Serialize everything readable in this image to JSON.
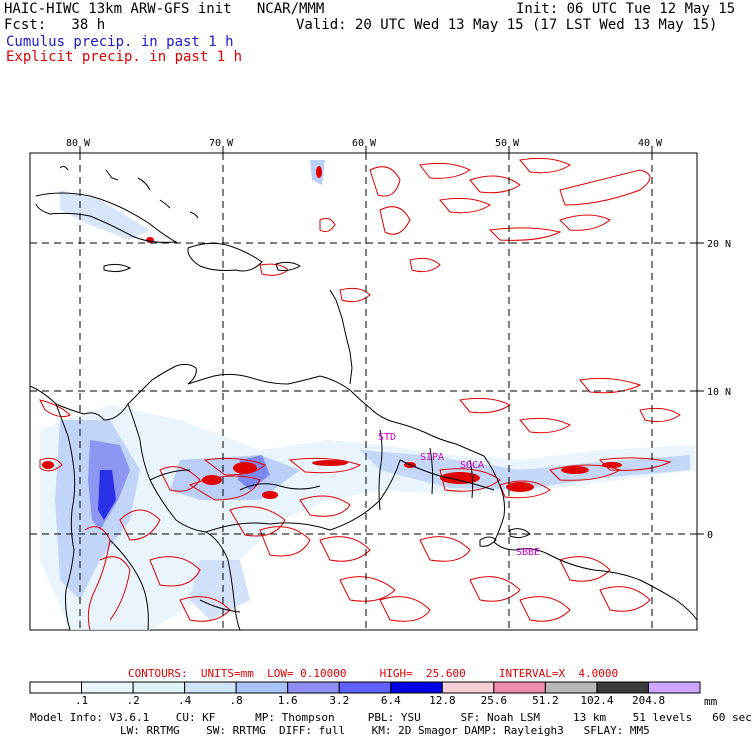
{
  "header": {
    "title": "HAIC-HIWC 13km ARW-GFS init   NCAR/MMM",
    "fcst": "Fcst:   38 h",
    "init": "Init: 06 UTC Tue 12 May 15",
    "valid": "Valid: 20 UTC Wed 13 May 15 (17 LST Wed 13 May 15)",
    "cumulus_legend": "Cumulus precip. in past 1 h",
    "explicit_legend": "Explicit precip. in past 1 h"
  },
  "map": {
    "lon_labels": [
      "80 W",
      "70 W",
      "60 W",
      "50 W",
      "40 W"
    ],
    "lat_labels": [
      "20 N",
      "10 N",
      "0"
    ],
    "station_labels": [
      "STD",
      "SIPA",
      "SOCA",
      "SBBE"
    ]
  },
  "contours": {
    "units_label": "CONTOURS:  UNITS=mm  LOW= 0.10000     HIGH=  25.600     INTERVAL=X  4.0000"
  },
  "colorbar": {
    "ticks": [
      ".1",
      ".2",
      ".4",
      ".8",
      "1.6",
      "3.2",
      "6.4",
      "12.8",
      "25.6",
      "51.2",
      "102.4",
      "204.8"
    ],
    "unit": "mm",
    "colors": [
      "#ffffff",
      "#ffffff",
      "#eaf4fb",
      "#dff3f3",
      "#cfe5f7",
      "#a9c3f7",
      "#8f8ff7",
      "#6060ff",
      "#0000e6",
      "#f7d0d8",
      "#f08cb0",
      "#b8b8b8",
      "#3c3c3c",
      "#cda6ff"
    ]
  },
  "model_info": {
    "line1": "Model Info: V3.6.1    CU: KF      MP: Thompson     PBL: YSU      SF: Noah LSM     13 km    51 levels   60 sec",
    "line2": "LW: RRTMG    SW: RRTMG  DIFF: full    KM: 2D Smagor DAMP: Rayleigh3   SFLAY: MM5"
  }
}
